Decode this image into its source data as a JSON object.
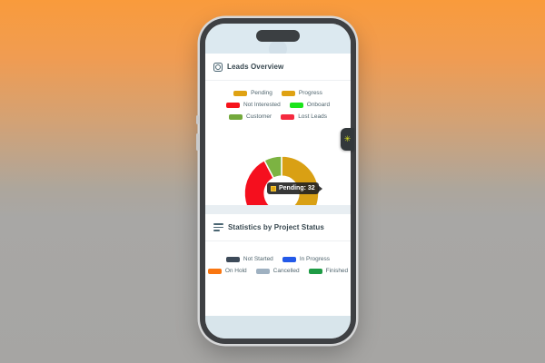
{
  "background": {
    "gradient_top": "#F99B3C",
    "gradient_bottom": "#A6A5A3"
  },
  "phone": {
    "frame_color": "#3E4043",
    "statusbar_color": "#DCE9F0"
  },
  "debug_tab": {
    "icon": "spark-asterisk",
    "glyph": "✳",
    "color": "#D7E01F"
  },
  "leads_card": {
    "title": "Leads Overview",
    "icon": "donut-chart-icon",
    "legend_rows": [
      [
        {
          "label": "Pending",
          "color": "#DFA213"
        },
        {
          "label": "Progress",
          "color": "#DFA213"
        }
      ],
      [
        {
          "label": "Not Interested",
          "color": "#F6131B"
        },
        {
          "label": "Onboard",
          "color": "#1BE41B"
        }
      ],
      [
        {
          "label": "Customer",
          "color": "#73A93C"
        },
        {
          "label": "Lost Leads",
          "color": "#F52A3F"
        }
      ]
    ]
  },
  "stats_card": {
    "title": "Statistics by Project Status",
    "icon": "horizontal-lines-chart-icon",
    "legend_rows": [
      [
        {
          "label": "Not Started",
          "color": "#3D4A59"
        },
        {
          "label": "In Progress",
          "color": "#2359E8"
        }
      ],
      [
        {
          "label": "On Hold",
          "color": "#F97611"
        },
        {
          "label": "Cancelled",
          "color": "#9FB1C1"
        },
        {
          "label": "Finished",
          "color": "#1E9B45"
        }
      ]
    ]
  },
  "chart_data": {
    "type": "pie",
    "donut": true,
    "title": "Leads Overview",
    "categories": [
      "Pending",
      "Progress",
      "Not Interested",
      "Onboard",
      "Customer",
      "Lost Leads"
    ],
    "values": [
      32,
      4,
      24,
      0,
      5,
      0
    ],
    "segments": [
      {
        "name": "Pending",
        "value": 32,
        "color": "#D9A014"
      },
      {
        "name": "Progress",
        "value": 4,
        "color": "#E9BC18"
      },
      {
        "name": "Not Interested",
        "value": 24,
        "color": "#F50F1E"
      },
      {
        "name": "Onboard",
        "value": 0,
        "color": "#1BE41B"
      },
      {
        "name": "Customer",
        "value": 5,
        "color": "#7CB342"
      },
      {
        "name": "Lost Leads",
        "value": 0,
        "color": "#F52A3F"
      }
    ],
    "start_angle_deg_from_top": 0,
    "direction": "clockwise",
    "inner_radius_ratio": 0.46,
    "slice_gap_color": "#FFFFFF",
    "legend_position": "top",
    "tooltip": {
      "text": "Pending: 32",
      "swatch_color": "#E0A612"
    }
  }
}
